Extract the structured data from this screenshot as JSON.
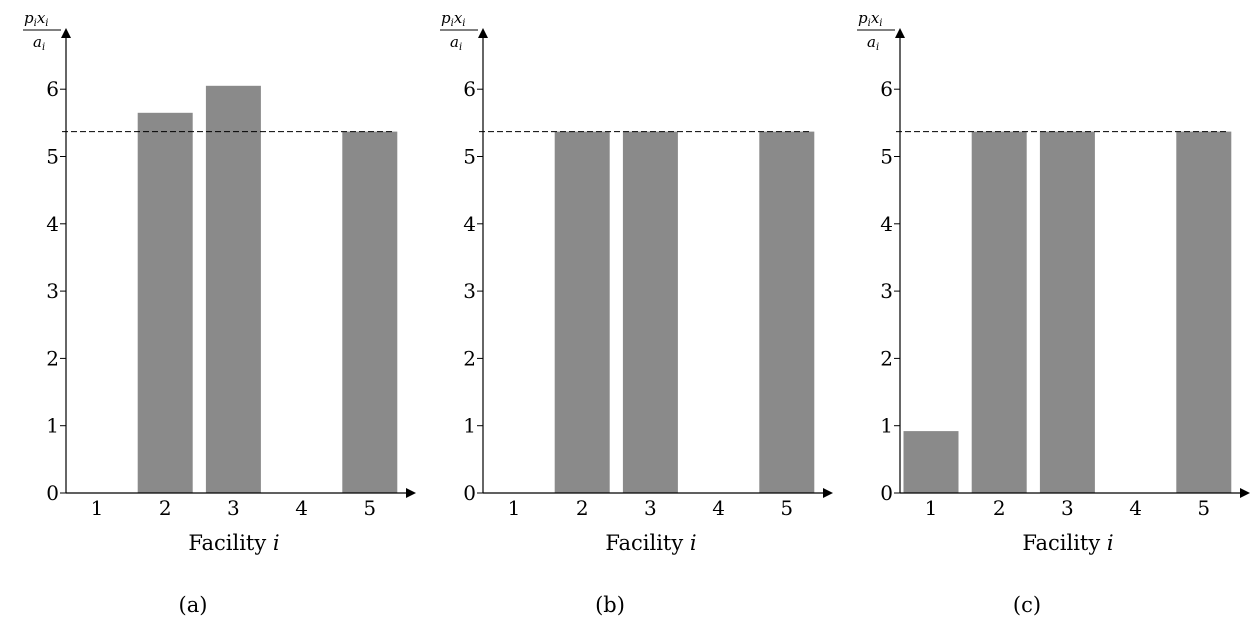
{
  "chart_data": [
    {
      "type": "bar",
      "caption": "(a)",
      "xlabel_prefix": "Facility ",
      "xlabel_var": "i",
      "ylabel": {
        "num_p": "p",
        "num_x": "x",
        "sub": "i",
        "den": "a"
      },
      "categories": [
        "1",
        "2",
        "3",
        "4",
        "5"
      ],
      "values": [
        0,
        5.65,
        6.05,
        0,
        5.37
      ],
      "yticks": [
        "0",
        "1",
        "2",
        "3",
        "4",
        "5",
        "6"
      ],
      "ylim": [
        0,
        6.5
      ],
      "reference_line": 5.37,
      "bar_color": "#8a8a8a",
      "grid": false
    },
    {
      "type": "bar",
      "caption": "(b)",
      "xlabel_prefix": "Facility ",
      "xlabel_var": "i",
      "ylabel": {
        "num_p": "p",
        "num_x": "x",
        "sub": "i",
        "den": "a"
      },
      "categories": [
        "1",
        "2",
        "3",
        "4",
        "5"
      ],
      "values": [
        0,
        5.37,
        5.37,
        0,
        5.37
      ],
      "yticks": [
        "0",
        "1",
        "2",
        "3",
        "4",
        "5",
        "6"
      ],
      "ylim": [
        0,
        6.5
      ],
      "reference_line": 5.37,
      "bar_color": "#8a8a8a",
      "grid": false
    },
    {
      "type": "bar",
      "caption": "(c)",
      "xlabel_prefix": "Facility ",
      "xlabel_var": "i",
      "ylabel": {
        "num_p": "p",
        "num_x": "x",
        "sub": "i",
        "den": "a"
      },
      "categories": [
        "1",
        "2",
        "3",
        "4",
        "5"
      ],
      "values": [
        0.92,
        5.37,
        5.37,
        0,
        5.37
      ],
      "yticks": [
        "0",
        "1",
        "2",
        "3",
        "4",
        "5",
        "6"
      ],
      "ylim": [
        0,
        6.5
      ],
      "reference_line": 5.37,
      "bar_color": "#8a8a8a",
      "grid": false
    }
  ]
}
